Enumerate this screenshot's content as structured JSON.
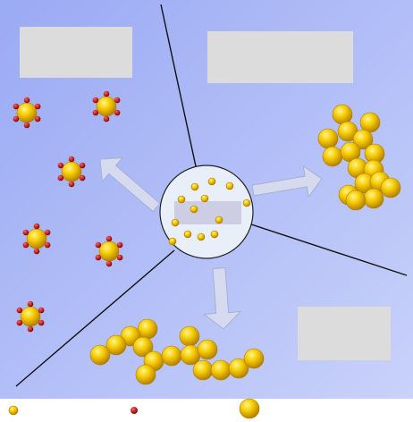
{
  "colors": {
    "bg_start": "#9AAAF4",
    "bg_end": "#C9D2FA",
    "divider": "#111111",
    "center_circle": "#E8EFF8",
    "label_box": "#DCDCDC",
    "gold_light": "#FFF58A",
    "gold_mid": "#F5CA00",
    "gold_dark": "#B07C00",
    "red_ligand": "#C00000",
    "arrow_fill": "#D5DAEF",
    "arrow_stroke": "#A8B0D0"
  },
  "icons": {
    "small_particle": "small-gold-nanoparticle-icon",
    "ligand": "red-ligand-dot-icon",
    "large_particle": "large-gold-nanoparticle-icon"
  },
  "panels": [
    "top-left-region",
    "top-right-region",
    "bottom-region",
    "center-solution"
  ],
  "legend": {
    "items": [
      "small-gold-nanoparticle",
      "ligand",
      "large-gold-nanoparticle"
    ]
  }
}
